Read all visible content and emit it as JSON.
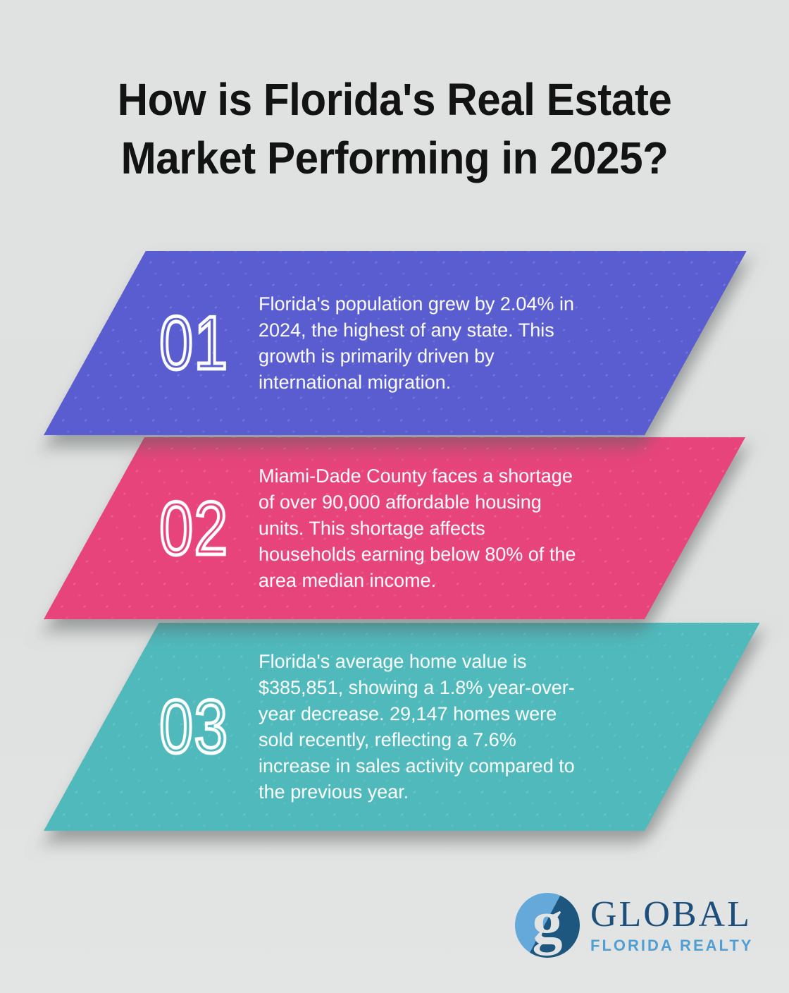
{
  "background": "#e0e2e2",
  "title": "How is Florida's Real Estate\nMarket Performing in 2025?",
  "steps": [
    {
      "number": "01",
      "color": "#5a5dd0",
      "text": "Florida's population grew by 2.04% in\n2024, the highest of any state. This\ngrowth is primarily driven by\ninternational migration."
    },
    {
      "number": "02",
      "color": "#e6447a",
      "text": "Miami-Dade County faces a shortage\nof over 90,000 affordable housing\nunits. This shortage affects\nhouseholds earning below 80% of the\narea median income."
    },
    {
      "number": "03",
      "color": "#4fb9bb",
      "text": "Florida's average home value is\n$385,851, showing a 1.8% year-over-\nyear decrease. 29,147 homes were\nsold recently, reflecting a 7.6%\nincrease in sales activity compared to\nthe previous year."
    }
  ],
  "logo": {
    "monogram": "g",
    "name": "GLOBAL",
    "subtitle": "FLORIDA REALTY",
    "mark_light_blue": "#64a9d9",
    "mark_dark_blue": "#1d567f",
    "name_color": "#1c4f7c",
    "subtitle_color": "#4f9fd4"
  }
}
